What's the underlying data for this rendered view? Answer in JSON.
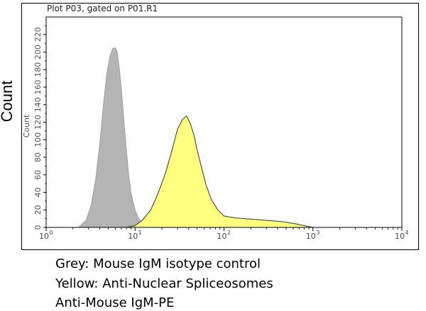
{
  "plot_title": "Plot P03, gated on P01.R1",
  "outer_ylabel": "Count",
  "captions": [
    "Grey: Mouse IgM isotype control",
    "Yellow: Anti-Nuclear Spliceosomes",
    "Anti-Mouse IgM-PE"
  ],
  "colors": {
    "grey_fill": "#b4b4b4",
    "yellow_fill": "#ffff80",
    "outline": "#333333"
  },
  "chart_data": {
    "type": "area",
    "title": "Plot P03, gated on P01.R1",
    "xlabel": "",
    "ylabel": "Count",
    "xscale": "log",
    "xlim": [
      1,
      10000
    ],
    "ylim": [
      0,
      240
    ],
    "x_ticks": [
      {
        "value": 1,
        "base": "10",
        "exp": "0"
      },
      {
        "value": 10,
        "base": "10",
        "exp": "1"
      },
      {
        "value": 100,
        "base": "10",
        "exp": "2"
      },
      {
        "value": 1000,
        "base": "10",
        "exp": "3"
      },
      {
        "value": 10000,
        "base": "10",
        "exp": "4"
      }
    ],
    "y_ticks": [
      "0",
      "20",
      "40",
      "60",
      "80",
      "100",
      "120",
      "140",
      "160",
      "180",
      "200",
      "220"
    ],
    "grid": false,
    "series": [
      {
        "color": "#b4b4b4",
        "x": [
          2.3,
          2.8,
          3.2,
          3.6,
          4.0,
          4.4,
          4.8,
          5.2,
          5.6,
          6.0,
          6.3,
          6.6,
          7.0,
          7.5,
          8.0,
          8.5,
          9.0,
          10.0,
          11.0,
          12.5,
          14.0,
          16.0
        ],
        "y": [
          0,
          8,
          25,
          55,
          95,
          140,
          175,
          195,
          204,
          205,
          200,
          185,
          160,
          122,
          88,
          60,
          40,
          20,
          10,
          4,
          1,
          0
        ]
      },
      {
        "color": "#ffff80",
        "x": [
          8.0,
          10.0,
          12.0,
          15.0,
          18.0,
          22.0,
          26.0,
          30.0,
          34.0,
          38.0,
          42.0,
          46.0,
          50.0,
          56.0,
          63.0,
          72.0,
          85.0,
          100.0,
          130.0,
          170.0,
          230.0,
          300.0,
          400.0,
          500.0,
          650.0,
          800.0,
          900.0,
          1000.0
        ],
        "y": [
          0,
          2,
          8,
          20,
          38,
          62,
          88,
          112,
          123,
          127,
          118,
          105,
          88,
          68,
          48,
          32,
          20,
          13,
          11,
          10,
          9,
          8,
          7,
          6,
          4,
          2,
          1,
          0
        ]
      }
    ]
  }
}
